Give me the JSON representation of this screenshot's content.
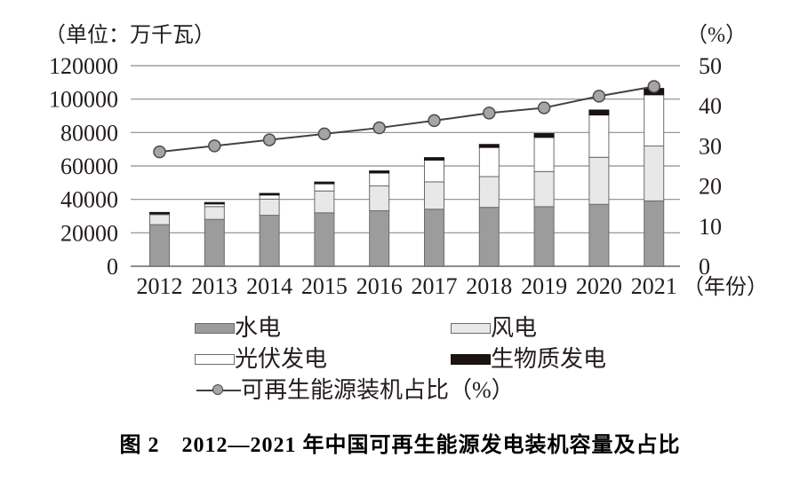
{
  "header": {
    "left_unit": "（单位：万千瓦）",
    "right_unit": "（%）"
  },
  "x_axis_suffix": "（年份）",
  "caption": "图 2　2012—2021 年中国可再生能源发电装机容量及占比",
  "colors": {
    "hydro": "#9c9c9c",
    "wind": "#e8e8e8",
    "solar": "#ffffff",
    "biomass": "#1a1310",
    "line": "#474040",
    "marker_fill": "#a5a5a5",
    "marker_stroke": "#4f4949",
    "grid": "#8c8c8c",
    "bar_border": "#6b6b6b",
    "text": "#231c1c"
  },
  "chart_data": {
    "type": "bar",
    "subtype": "stacked-bar-with-line",
    "title": "图 2　2012—2021 年中国可再生能源发电装机容量及占比",
    "categories": [
      "2012",
      "2013",
      "2014",
      "2015",
      "2016",
      "2017",
      "2018",
      "2019",
      "2020",
      "2021"
    ],
    "series": [
      {
        "name": "水电",
        "type": "bar",
        "color": "#9c9c9c",
        "values": [
          24890,
          28044,
          30486,
          31954,
          33211,
          34119,
          35226,
          35640,
          37016,
          39092
        ]
      },
      {
        "name": "风电",
        "type": "bar",
        "color": "#e8e8e8",
        "values": [
          6142,
          7652,
          9657,
          13075,
          14864,
          16367,
          18426,
          21005,
          28153,
          32848
        ]
      },
      {
        "name": "光伏发电",
        "type": "bar",
        "color": "#ffffff",
        "values": [
          341,
          1589,
          2486,
          4318,
          7742,
          13025,
          17446,
          20468,
          25343,
          30656
        ]
      },
      {
        "name": "生物质发电",
        "type": "bar",
        "color": "#1a1310",
        "values": [
          817,
          850,
          950,
          1031,
          1214,
          1476,
          1781,
          2254,
          2952,
          3798
        ]
      },
      {
        "name": "可再生能源装机占比（%）",
        "type": "line",
        "axis": "right",
        "color": "#474040",
        "values": [
          28.5,
          30.0,
          31.5,
          33.0,
          34.5,
          36.3,
          38.2,
          39.5,
          42.4,
          44.8
        ]
      }
    ],
    "left_axis": {
      "label": "（单位：万千瓦）",
      "ticks": [
        0,
        20000,
        40000,
        60000,
        80000,
        100000,
        120000
      ],
      "max": 120000
    },
    "right_axis": {
      "label": "（%）",
      "ticks": [
        0,
        10,
        20,
        30,
        40,
        50
      ],
      "max": 50
    },
    "xlabel": "（年份）",
    "grid": "horizontal",
    "legend_position": "bottom"
  }
}
